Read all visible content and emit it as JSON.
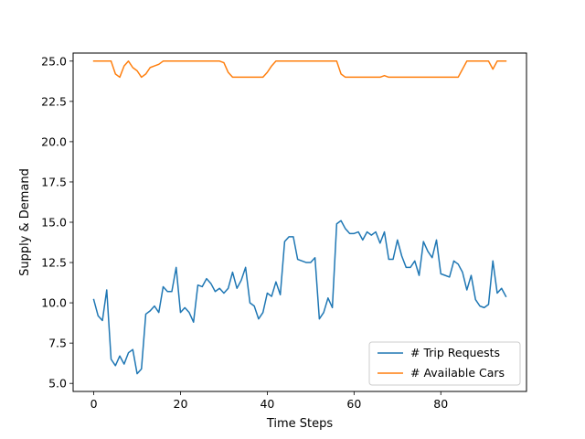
{
  "chart_data": {
    "type": "line",
    "xlabel": "Time Steps",
    "ylabel": "Supply & Demand",
    "xlim": [
      -4.75,
      99.75
    ],
    "ylim": [
      4.5,
      25.5
    ],
    "xticks": [
      0,
      20,
      40,
      60,
      80
    ],
    "yticks": [
      5.0,
      7.5,
      10.0,
      12.5,
      15.0,
      17.5,
      20.0,
      22.5,
      25.0
    ],
    "xtick_labels": [
      "0",
      "20",
      "40",
      "60",
      "80"
    ],
    "ytick_labels": [
      "5.0",
      "7.5",
      "10.0",
      "12.5",
      "15.0",
      "17.5",
      "20.0",
      "22.5",
      "25.0"
    ],
    "grid": false,
    "legend_position": "lower-right",
    "series": [
      {
        "name": "# Trip Requests",
        "color": "#1f77b4",
        "values": [
          10.2,
          9.2,
          8.9,
          10.8,
          6.5,
          6.1,
          6.7,
          6.2,
          6.9,
          7.1,
          5.6,
          5.9,
          9.3,
          9.5,
          9.8,
          9.4,
          11.0,
          10.7,
          10.7,
          12.2,
          9.4,
          9.7,
          9.4,
          8.8,
          11.1,
          11.0,
          11.5,
          11.2,
          10.7,
          10.9,
          10.6,
          10.9,
          11.9,
          10.9,
          11.4,
          12.2,
          10.0,
          9.8,
          9.0,
          9.4,
          10.6,
          10.4,
          11.3,
          10.5,
          13.8,
          14.1,
          14.1,
          12.7,
          12.6,
          12.5,
          12.5,
          12.8,
          9.0,
          9.4,
          10.3,
          9.7,
          14.9,
          15.1,
          14.6,
          14.3,
          14.3,
          14.4,
          13.9,
          14.4,
          14.2,
          14.4,
          13.7,
          14.4,
          12.7,
          12.7,
          13.9,
          12.9,
          12.2,
          12.2,
          12.6,
          11.7,
          13.8,
          13.2,
          12.8,
          13.9,
          11.8,
          11.7,
          11.6,
          12.6,
          12.4,
          11.9,
          10.8,
          11.7,
          10.2,
          9.8,
          9.7,
          9.9,
          12.6,
          10.6,
          10.9,
          10.4
        ]
      },
      {
        "name": "# Available Cars",
        "color": "#ff7f0e",
        "values": [
          25.0,
          25.0,
          25.0,
          25.0,
          25.0,
          24.2,
          24.0,
          24.7,
          25.0,
          24.6,
          24.4,
          24.0,
          24.2,
          24.6,
          24.7,
          24.8,
          25.0,
          25.0,
          25.0,
          25.0,
          25.0,
          25.0,
          25.0,
          25.0,
          25.0,
          25.0,
          25.0,
          25.0,
          25.0,
          25.0,
          24.9,
          24.3,
          24.0,
          24.0,
          24.0,
          24.0,
          24.0,
          24.0,
          24.0,
          24.0,
          24.3,
          24.7,
          25.0,
          25.0,
          25.0,
          25.0,
          25.0,
          25.0,
          25.0,
          25.0,
          25.0,
          25.0,
          25.0,
          25.0,
          25.0,
          25.0,
          25.0,
          24.2,
          24.0,
          24.0,
          24.0,
          24.0,
          24.0,
          24.0,
          24.0,
          24.0,
          24.0,
          24.1,
          24.0,
          24.0,
          24.0,
          24.0,
          24.0,
          24.0,
          24.0,
          24.0,
          24.0,
          24.0,
          24.0,
          24.0,
          24.0,
          24.0,
          24.0,
          24.0,
          24.0,
          24.5,
          25.0,
          25.0,
          25.0,
          25.0,
          25.0,
          25.0,
          24.5,
          25.0,
          25.0,
          25.0
        ]
      }
    ]
  }
}
